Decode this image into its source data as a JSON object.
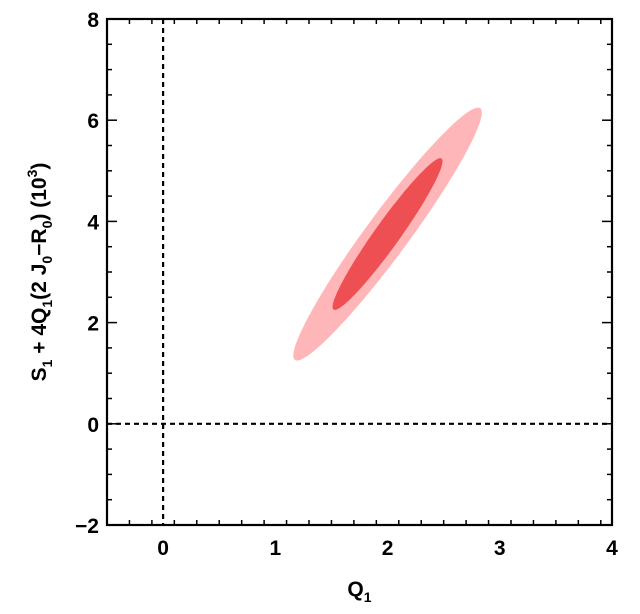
{
  "chart_data": {
    "type": "contour",
    "xlabel": "Q1",
    "ylabel": "S1 + 4Q1(2 J0−R0) (10^3)",
    "xlim": [
      -0.5,
      4
    ],
    "ylim": [
      -2,
      8
    ],
    "x_ticks": [
      "0",
      "1",
      "2",
      "3",
      "4"
    ],
    "y_ticks": [
      "−2",
      "0",
      "2",
      "4",
      "6",
      "8"
    ],
    "reference_lines": {
      "x": 0,
      "y": 0,
      "style": "dashed"
    },
    "regions": [
      {
        "level": "outer",
        "color": "#ffb6b9",
        "center": [
          2.0,
          3.75
        ],
        "x_extent": [
          1.16,
          2.84
        ],
        "y_extent": [
          1.25,
          6.25
        ]
      },
      {
        "level": "inner",
        "color": "#ee4f52",
        "center": [
          2.0,
          3.75
        ],
        "x_extent": [
          1.51,
          2.49
        ],
        "y_extent": [
          2.25,
          5.25
        ]
      }
    ],
    "grid": false,
    "legend": "none"
  }
}
